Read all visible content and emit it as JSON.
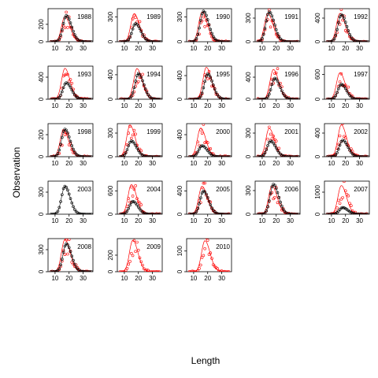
{
  "chart_data": {
    "type": "scatter",
    "xlabel": "Length",
    "ylabel": "Observation",
    "xlim": [
      5,
      37
    ],
    "x_ticks": [
      10,
      20,
      30
    ],
    "legend": "none",
    "colors": {
      "observed": "#000000",
      "model": "#ff0000"
    },
    "panels": [
      {
        "year": "1988",
        "ylim": [
          0,
          380
        ],
        "yticks": [
          0,
          200
        ],
        "peak_x": 18,
        "obs_peak": 300,
        "model_peak": 290
      },
      {
        "year": "1989",
        "ylim": [
          0,
          400
        ],
        "yticks": [
          0,
          300
        ],
        "peak_x": 18,
        "obs_peak": 220,
        "model_peak": 340
      },
      {
        "year": "1990",
        "ylim": [
          0,
          400
        ],
        "yticks": [
          0,
          300
        ],
        "peak_x": 17,
        "obs_peak": 370,
        "model_peak": 360
      },
      {
        "year": "1991",
        "ylim": [
          0,
          420
        ],
        "yticks": [
          0,
          300
        ],
        "peak_x": 15,
        "obs_peak": 380,
        "model_peak": 360
      },
      {
        "year": "1992",
        "ylim": [
          0,
          560
        ],
        "yticks": [
          0,
          400
        ],
        "peak_x": 17,
        "obs_peak": 460,
        "model_peak": 480
      },
      {
        "year": "1993",
        "ylim": [
          0,
          600
        ],
        "yticks": [
          0,
          400
        ],
        "peak_x": 18,
        "obs_peak": 300,
        "model_peak": 560
      },
      {
        "year": "1994",
        "ylim": [
          0,
          540
        ],
        "yticks": [
          0,
          400
        ],
        "peak_x": 20,
        "obs_peak": 420,
        "model_peak": 500
      },
      {
        "year": "1995",
        "ylim": [
          0,
          560
        ],
        "yticks": [
          0,
          400
        ],
        "peak_x": 20,
        "obs_peak": 430,
        "model_peak": 540
      },
      {
        "year": "1996",
        "ylim": [
          0,
          600
        ],
        "yticks": [
          0,
          400
        ],
        "peak_x": 19,
        "obs_peak": 380,
        "model_peak": 540
      },
      {
        "year": "1997",
        "ylim": [
          0,
          800
        ],
        "yticks": [
          0,
          600
        ],
        "peak_x": 17,
        "obs_peak": 360,
        "model_peak": 640
      },
      {
        "year": "1998",
        "ylim": [
          0,
          300
        ],
        "yticks": [
          0,
          200
        ],
        "peak_x": 17,
        "obs_peak": 250,
        "model_peak": 240
      },
      {
        "year": "1999",
        "ylim": [
          0,
          420
        ],
        "yticks": [
          0,
          300
        ],
        "peak_x": 15,
        "obs_peak": 200,
        "model_peak": 400
      },
      {
        "year": "2000",
        "ylim": [
          0,
          600
        ],
        "yticks": [
          0,
          400
        ],
        "peak_x": 16,
        "obs_peak": 200,
        "model_peak": 520
      },
      {
        "year": "2001",
        "ylim": [
          0,
          420
        ],
        "yticks": [
          0,
          300
        ],
        "peak_x": 16,
        "obs_peak": 200,
        "model_peak": 360
      },
      {
        "year": "2002",
        "ylim": [
          0,
          560
        ],
        "yticks": [
          0,
          400
        ],
        "peak_x": 18,
        "obs_peak": 280,
        "model_peak": 540
      },
      {
        "year": "2003",
        "ylim": [
          0,
          450
        ],
        "yticks": [
          0,
          300
        ],
        "peak_x": 17,
        "obs_peak": 380,
        "model_peak": 0
      },
      {
        "year": "2004",
        "ylim": [
          0,
          850
        ],
        "yticks": [
          0,
          600
        ],
        "peak_x": 16,
        "obs_peak": 330,
        "model_peak": 760
      },
      {
        "year": "2005",
        "ylim": [
          0,
          570
        ],
        "yticks": [
          0,
          400
        ],
        "peak_x": 17,
        "obs_peak": 400,
        "model_peak": 480
      },
      {
        "year": "2006",
        "ylim": [
          0,
          420
        ],
        "yticks": [
          0,
          300
        ],
        "peak_x": 18,
        "obs_peak": 380,
        "model_peak": 360
      },
      {
        "year": "2007",
        "ylim": [
          0,
          1500
        ],
        "yticks": [
          0,
          1000
        ],
        "peak_x": 18,
        "obs_peak": 300,
        "model_peak": 1300
      },
      {
        "year": "2008",
        "ylim": [
          0,
          450
        ],
        "yticks": [
          0,
          300
        ],
        "peak_x": 18,
        "obs_peak": 380,
        "model_peak": 440
      },
      {
        "year": "2009",
        "ylim": [
          0,
          400
        ],
        "yticks": [
          0,
          200
        ],
        "peak_x": 17,
        "obs_peak": 0,
        "model_peak": 380
      },
      {
        "year": "2010",
        "ylim": [
          0,
          160
        ],
        "yticks": [
          0,
          100
        ],
        "peak_x": 19,
        "obs_peak": 0,
        "model_peak": 150
      }
    ]
  }
}
